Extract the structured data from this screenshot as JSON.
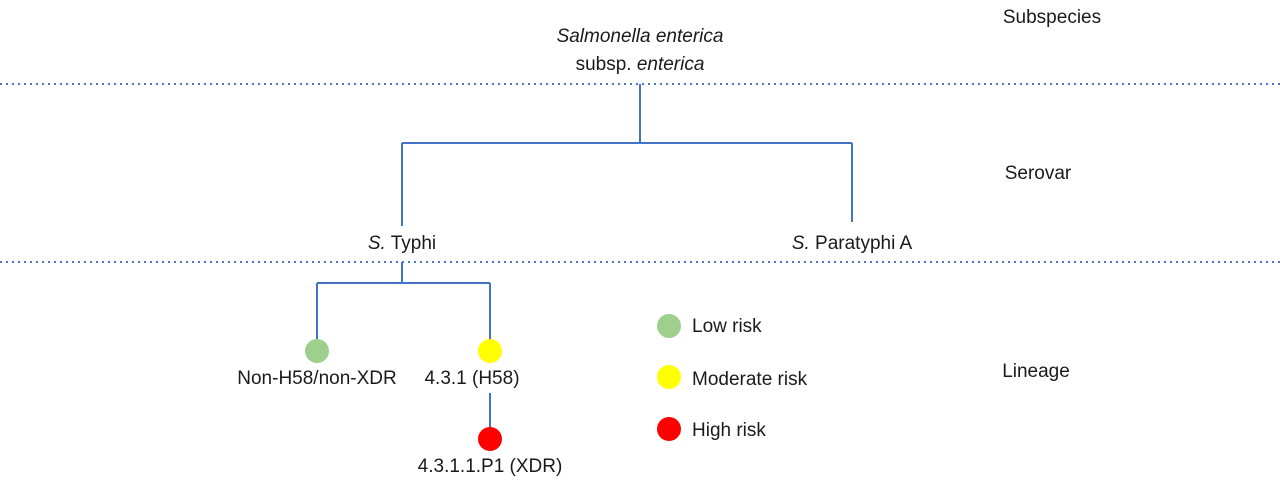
{
  "levels": {
    "subspecies": "Subspecies",
    "serovar": "Serovar",
    "lineage": "Lineage"
  },
  "root": {
    "line1": "Salmonella enterica",
    "line2_prefix": "subsp. ",
    "line2_italic": "enterica"
  },
  "serovars": {
    "typhi": {
      "abbr": "S.",
      "name": " Typhi"
    },
    "paratyphi": {
      "abbr": "S.",
      "name": " Paratyphi A"
    }
  },
  "lineages": {
    "non_h58": {
      "label": "Non-H58/non-XDR",
      "color": "#9fcf8c",
      "risk": "Low risk"
    },
    "h58": {
      "label": "4.3.1 (H58)",
      "color": "#ffff00",
      "risk": "Moderate risk"
    },
    "xdr": {
      "label": "4.3.1.1.P1 (XDR)",
      "color": "#ff0000",
      "risk": "High risk"
    }
  },
  "legend": [
    {
      "label": "Low risk",
      "color": "#9fcf8c"
    },
    {
      "label": "Moderate risk",
      "color": "#ffff00"
    },
    {
      "label": "High risk",
      "color": "#ff0000"
    }
  ],
  "colors": {
    "edge": "#4472c4",
    "rule": "#4a78c2"
  }
}
